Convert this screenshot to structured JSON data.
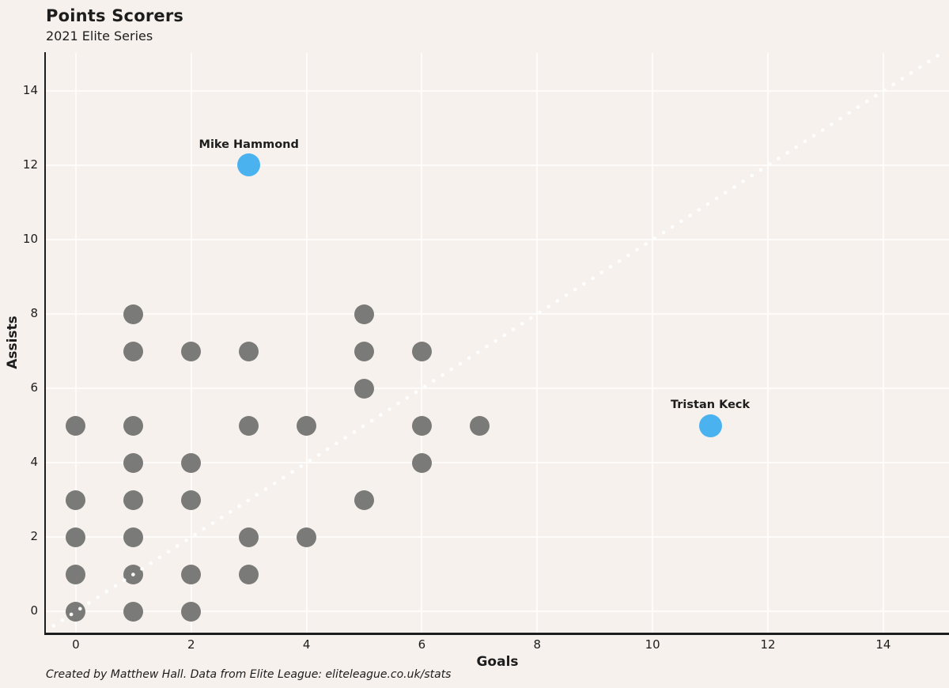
{
  "title": "Points Scorers",
  "subtitle": "2021 Elite Series",
  "footer": "Created by Matthew Hall. Data from Elite League: eliteleague.co.uk/stats",
  "colors": {
    "background": "#f6f1ec",
    "axis": "#1d1d1d",
    "text": "#1d1d1d",
    "grid": "rgba(255,255,255,0.75)",
    "point": "#7a7a78",
    "highlight": "#4bb2f0",
    "reference_line": "#ffffff"
  },
  "chart_data": {
    "type": "scatter",
    "title": "Points Scorers",
    "subtitle": "2021 Elite Series",
    "xlabel": "Goals",
    "ylabel": "Assists",
    "x_ticks": [
      0,
      2,
      4,
      6,
      8,
      10,
      12,
      14
    ],
    "y_ticks": [
      0,
      2,
      4,
      6,
      8,
      10,
      12,
      14
    ],
    "xlim": [
      -0.52,
      15.14
    ],
    "ylim": [
      -0.57,
      15.02
    ],
    "grid": true,
    "legend": false,
    "reference_line": {
      "name": "equal-goals-and-assists-diagonal",
      "style": "dotted",
      "from": [
        -1,
        -1
      ],
      "to": [
        16,
        16
      ]
    },
    "series": [
      {
        "name": "players",
        "color": "#7a7a78",
        "marker_size": 25,
        "points": [
          [
            0,
            0
          ],
          [
            0,
            1
          ],
          [
            0,
            2
          ],
          [
            0,
            3
          ],
          [
            0,
            5
          ],
          [
            1,
            0
          ],
          [
            1,
            1
          ],
          [
            1,
            2
          ],
          [
            1,
            3
          ],
          [
            1,
            4
          ],
          [
            1,
            5
          ],
          [
            1,
            7
          ],
          [
            1,
            8
          ],
          [
            2,
            0
          ],
          [
            2,
            1
          ],
          [
            2,
            3
          ],
          [
            2,
            4
          ],
          [
            2,
            7
          ],
          [
            3,
            1
          ],
          [
            3,
            2
          ],
          [
            3,
            5
          ],
          [
            3,
            7
          ],
          [
            4,
            2
          ],
          [
            4,
            5
          ],
          [
            5,
            3
          ],
          [
            5,
            6
          ],
          [
            5,
            7
          ],
          [
            5,
            8
          ],
          [
            6,
            4
          ],
          [
            6,
            5
          ],
          [
            6,
            7
          ],
          [
            7,
            5
          ]
        ]
      },
      {
        "name": "highlighted-players",
        "color": "#4bb2f0",
        "marker_size": 29,
        "points": [
          {
            "x": 3,
            "y": 12,
            "label": "Mike Hammond"
          },
          {
            "x": 11,
            "y": 5,
            "label": "Tristan Keck"
          }
        ]
      }
    ]
  }
}
